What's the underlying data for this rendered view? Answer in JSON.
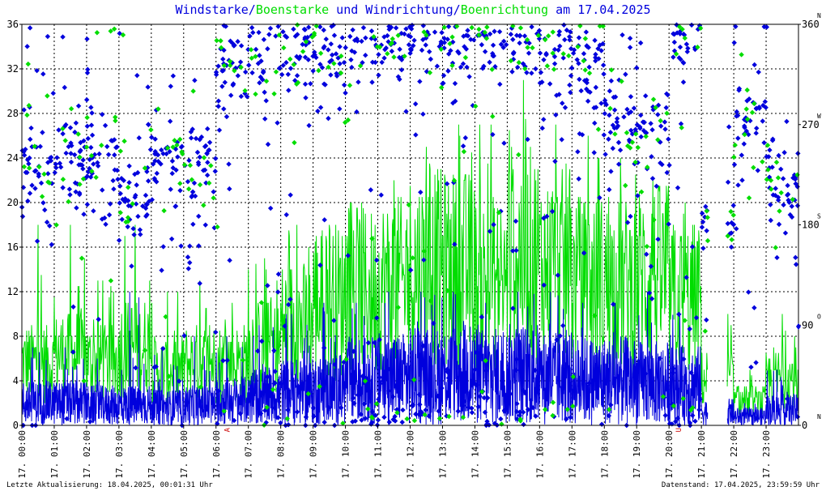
{
  "title": {
    "part1": "Windstarke/",
    "part2": "Boenstarke",
    "part3": " und Windrichtung/",
    "part4": "Boenrichtung",
    "part5": " am 17.04.2025"
  },
  "footer": {
    "left": "Letzte Aktualisierung: 18.04.2025, 00:01:31 Uhr",
    "right": "Datenstand: 17.04.2025, 23:59:59 Uhr"
  },
  "colors": {
    "wind": "#0000dd",
    "gust": "#00dd00",
    "grid": "#000000",
    "marker_red": "#cc0000"
  },
  "chart_data": {
    "type": "line",
    "x_tick_labels": [
      "17. 00:00",
      "17. 01:00",
      "17. 02:00",
      "17. 03:00",
      "17. 04:00",
      "17. 05:00",
      "17. 06:00",
      "17. 07:00",
      "17. 08:00",
      "17. 09:00",
      "17. 10:00",
      "17. 11:00",
      "17. 12:00",
      "17. 13:00",
      "17. 14:00",
      "17. 15:00",
      "17. 16:00",
      "17. 17:00",
      "17. 18:00",
      "17. 19:00",
      "17. 20:00",
      "17. 21:00",
      "17. 22:00",
      "17. 23:00"
    ],
    "xlim_hours": [
      0,
      24
    ],
    "y_left": {
      "ticks": [
        0,
        4,
        8,
        12,
        16,
        20,
        24,
        28,
        32,
        36
      ],
      "ylim": [
        0,
        36
      ]
    },
    "y_right": {
      "ticks": [
        0,
        90,
        180,
        270,
        360
      ],
      "ylim": [
        0,
        360
      ],
      "compass": [
        {
          "deg": 0,
          "label": "N"
        },
        {
          "deg": 90,
          "label": "O"
        },
        {
          "deg": 180,
          "label": "S"
        },
        {
          "deg": 270,
          "label": "W"
        },
        {
          "deg": 360,
          "label": "N"
        }
      ]
    },
    "grid": true,
    "markers": [
      {
        "hour": 6.35,
        "label": "A"
      },
      {
        "hour": 20.3,
        "label": "U"
      }
    ],
    "series": [
      {
        "name": "Windstarke",
        "kind": "line",
        "hourly_mean": [
          2.0,
          2.0,
          1.8,
          1.8,
          1.6,
          1.8,
          2.2,
          2.6,
          3.0,
          3.2,
          4.0,
          4.2,
          4.4,
          4.6,
          4.4,
          4.6,
          4.2,
          4.0,
          4.0,
          3.8,
          3.6,
          1.2,
          0.8,
          1.4
        ],
        "hourly_max": [
          7,
          7,
          6,
          12,
          7,
          8,
          8,
          9,
          10,
          11,
          11,
          12,
          12,
          12,
          11,
          12,
          12,
          11,
          11,
          12,
          10,
          4,
          2,
          5
        ],
        "gap_hours": [
          [
            21.2,
            21.8
          ]
        ]
      },
      {
        "name": "Boenstarke",
        "kind": "line",
        "hourly_typical": [
          8,
          9,
          8,
          10,
          7,
          8,
          8,
          10,
          13,
          16,
          17,
          18,
          20,
          20,
          18,
          22,
          20,
          18,
          18,
          19,
          16,
          6,
          3,
          6
        ],
        "hourly_max": [
          18,
          18,
          13,
          18,
          12,
          13,
          11,
          15,
          18,
          18,
          20,
          22,
          25,
          27,
          27,
          31,
          27,
          26,
          24,
          22,
          20,
          10,
          5,
          10
        ],
        "gap_hours": [
          [
            21.2,
            21.8
          ]
        ]
      },
      {
        "name": "Windrichtung",
        "kind": "scatter",
        "axis": "right",
        "hourly_main_direction_deg": [
          235,
          240,
          240,
          200,
          240,
          230,
          330,
          340,
          340,
          340,
          350,
          350,
          350,
          350,
          350,
          350,
          340,
          330,
          270,
          260,
          350,
          180,
          270,
          220
        ]
      },
      {
        "name": "Boenrichtung",
        "kind": "scatter",
        "axis": "right",
        "hourly_main_direction_deg": [
          235,
          240,
          240,
          200,
          250,
          230,
          330,
          340,
          340,
          340,
          350,
          350,
          350,
          350,
          350,
          350,
          340,
          330,
          270,
          260,
          350,
          180,
          270,
          220
        ]
      }
    ]
  }
}
